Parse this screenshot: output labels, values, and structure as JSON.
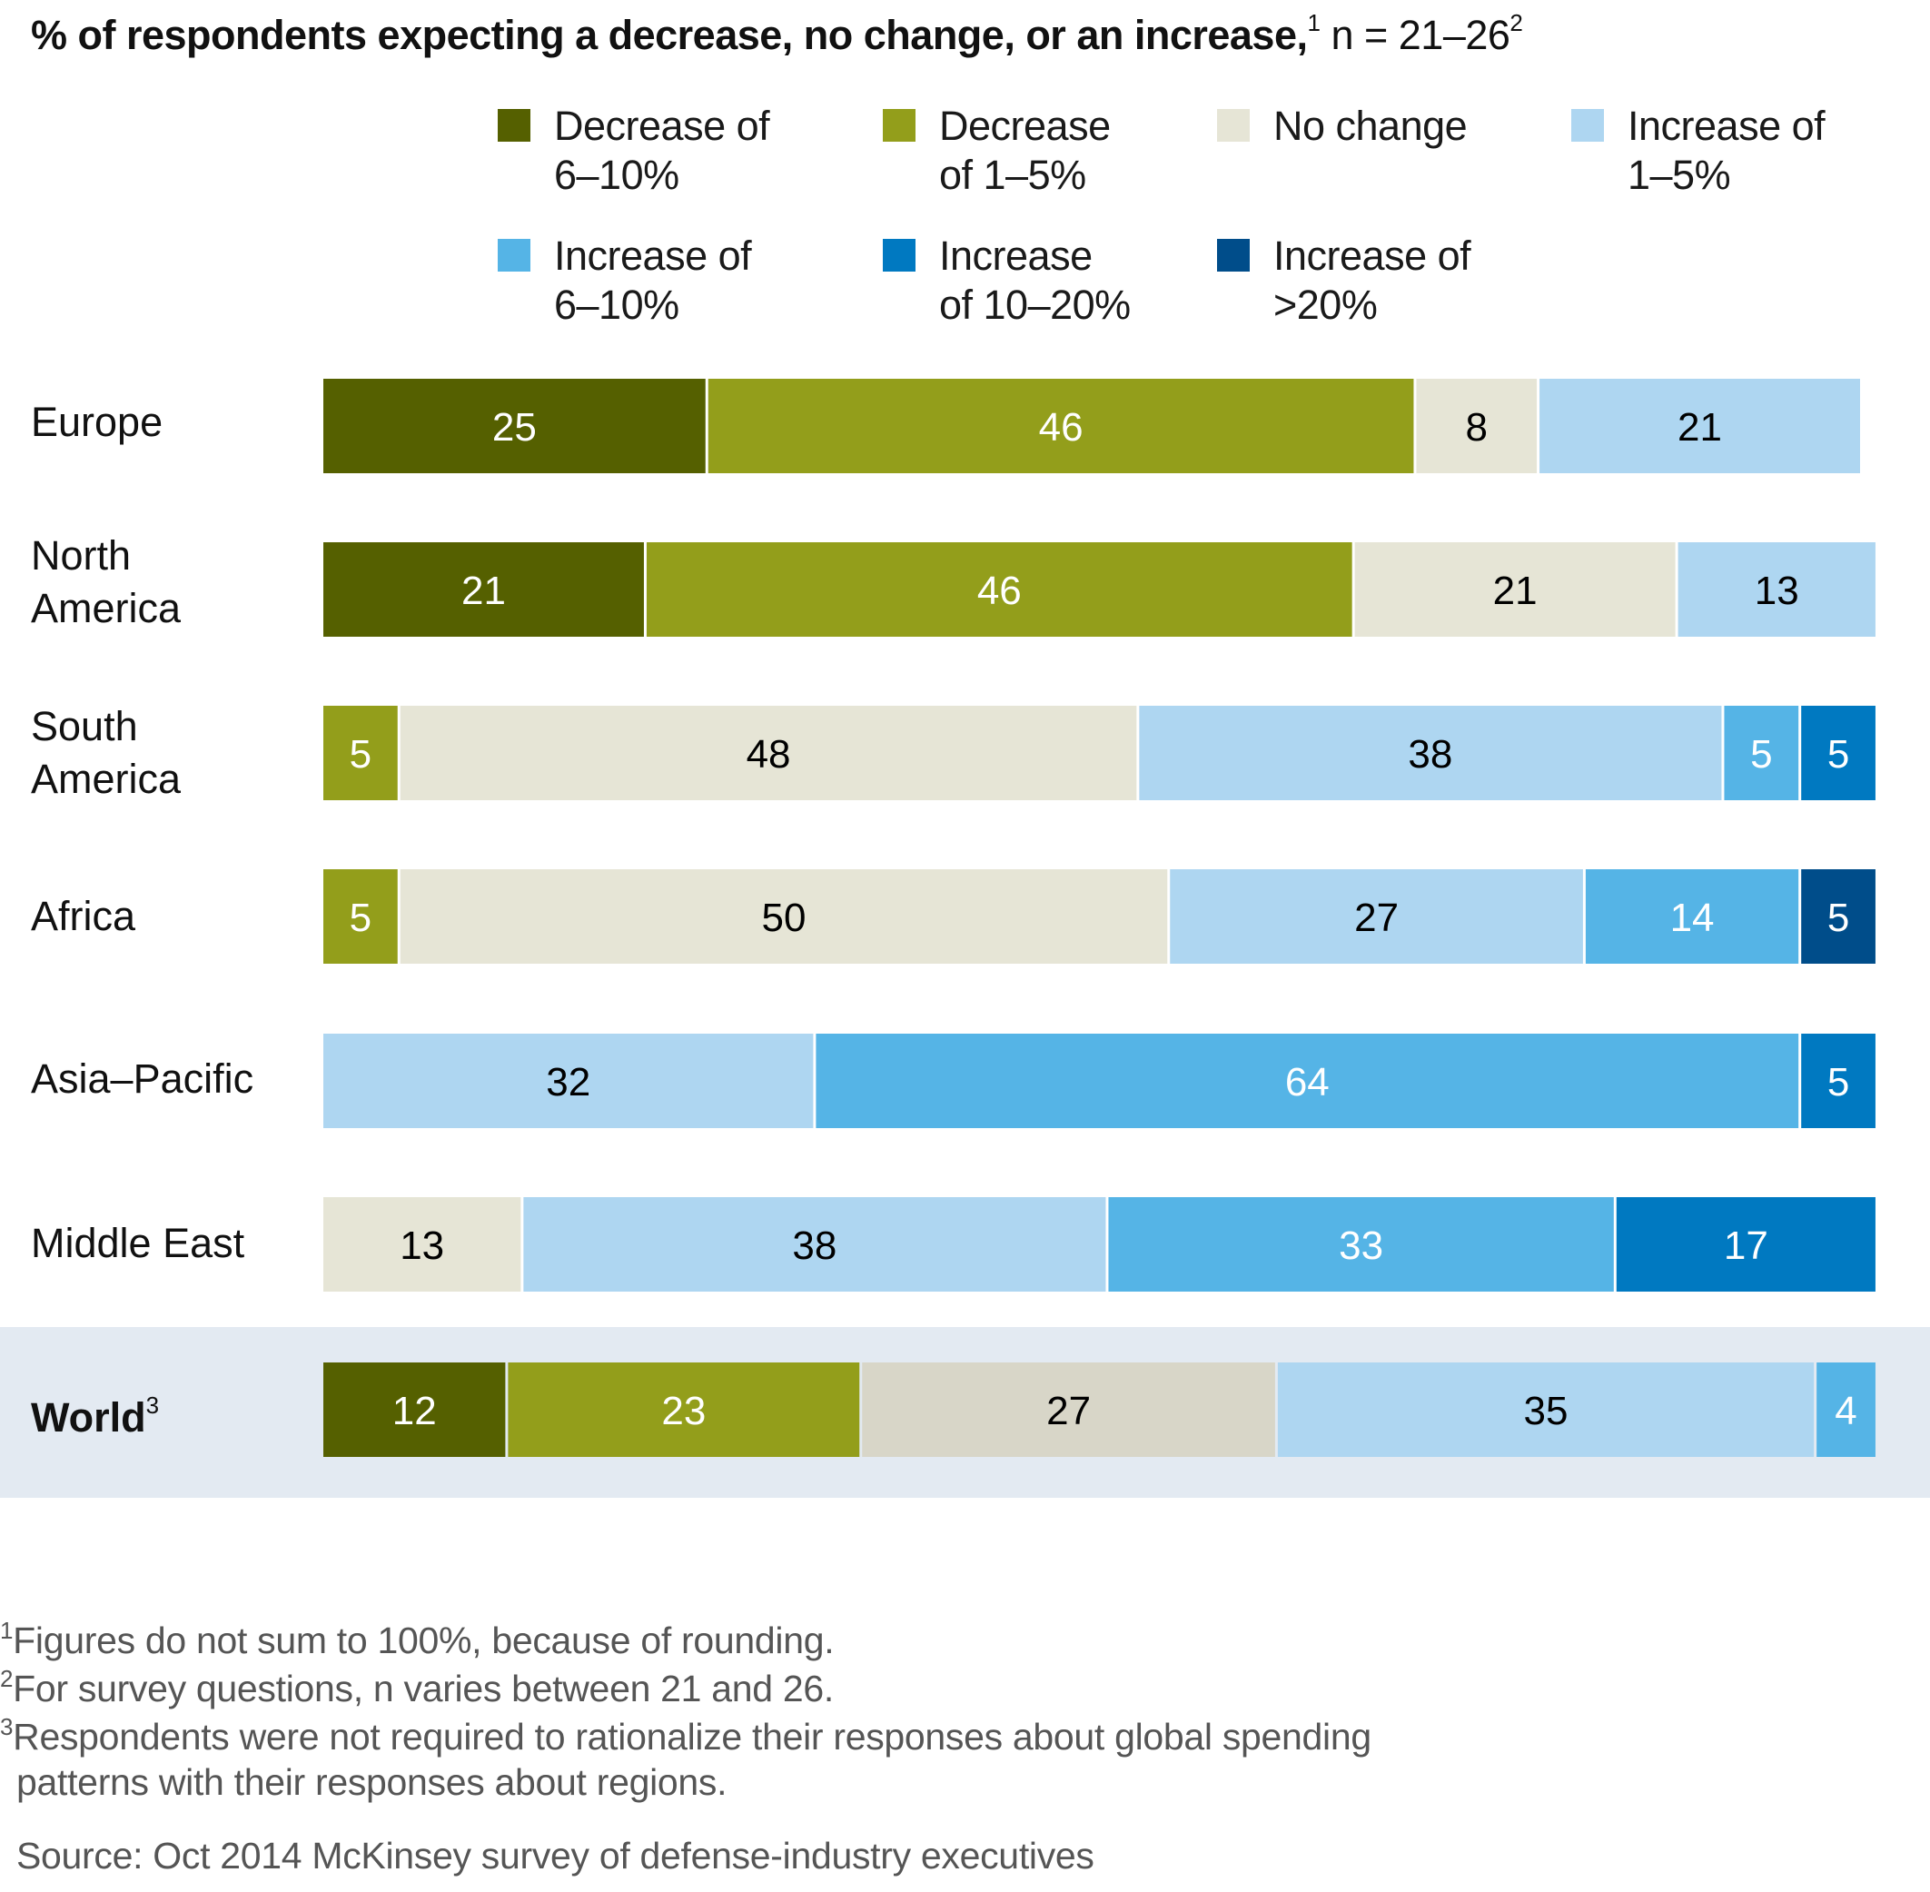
{
  "chart_data": {
    "type": "bar",
    "orientation": "horizontal",
    "stacked": true,
    "title": "% of respondents expecting a decrease, no change, or an increase,",
    "title_sup_1": "1",
    "title_n": " n = 21–26",
    "title_sup_2": "2",
    "xlim": [
      0,
      101
    ],
    "categories": [
      "Europe",
      "North\nAmerica",
      "South\nAmerica",
      "Africa",
      "Asia–Pacific",
      "Middle East",
      "World"
    ],
    "world_sup": "3",
    "series": [
      {
        "name": "Decrease of\n6–10%",
        "color": "#556000",
        "text_color": "#ffffff",
        "values": [
          25,
          21,
          0,
          0,
          0,
          0,
          12
        ]
      },
      {
        "name": "Decrease\nof 1–5%",
        "color": "#939e1b",
        "text_color": "#ffffff",
        "values": [
          46,
          46,
          5,
          5,
          0,
          0,
          23
        ]
      },
      {
        "name": "No change",
        "color": "#e6e5d6",
        "text_color": "#000000",
        "values": [
          8,
          21,
          48,
          50,
          0,
          13,
          27
        ]
      },
      {
        "name": "Increase of\n1–5%",
        "color": "#aed6f1",
        "text_color": "#000000",
        "values": [
          21,
          13,
          38,
          27,
          32,
          38,
          35
        ]
      },
      {
        "name": "Increase of\n6–10%",
        "color": "#55b4e6",
        "text_color": "#ffffff",
        "values": [
          0,
          0,
          5,
          14,
          64,
          33,
          4
        ]
      },
      {
        "name": "Increase\nof 10–20%",
        "color": "#0079c1",
        "text_color": "#ffffff",
        "values": [
          0,
          0,
          5,
          0,
          5,
          17,
          0
        ]
      },
      {
        "name": "Increase of\n>20%",
        "color": "#004d8a",
        "text_color": "#ffffff",
        "values": [
          0,
          0,
          0,
          5,
          0,
          0,
          0
        ]
      }
    ],
    "world_no_change_color": "#d8d6c8",
    "legend_position": "top",
    "grid": false
  },
  "footnotes": [
    {
      "sup": "1",
      "text": "Figures do not sum to 100%, because of rounding."
    },
    {
      "sup": "2",
      "text": "For survey questions, n varies between 21 and 26."
    },
    {
      "sup": "3",
      "text": "Respondents were not required to rationalize their responses about global spending"
    },
    {
      "sup": "",
      "text": "patterns with their responses about regions."
    }
  ],
  "source": "Source: Oct 2014 McKinsey survey of defense-industry executives"
}
